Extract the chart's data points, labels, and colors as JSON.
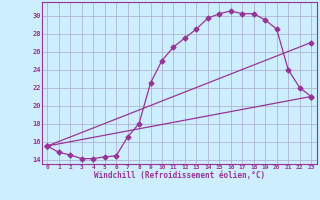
{
  "xlabel": "Windchill (Refroidissement éolien,°C)",
  "xlim": [
    -0.5,
    23.5
  ],
  "ylim": [
    13.5,
    31.5
  ],
  "yticks": [
    14,
    16,
    18,
    20,
    22,
    24,
    26,
    28,
    30
  ],
  "xticks": [
    0,
    1,
    2,
    3,
    4,
    5,
    6,
    7,
    8,
    9,
    10,
    11,
    12,
    13,
    14,
    15,
    16,
    17,
    18,
    19,
    20,
    21,
    22,
    23
  ],
  "line_color": "#993399",
  "bg_color": "#cceeff",
  "grid_color": "#aaaacc",
  "line1_x": [
    0,
    1,
    2,
    3,
    4,
    5,
    6,
    7,
    8,
    9,
    10,
    11,
    12,
    13,
    14,
    15,
    16,
    17,
    18,
    19,
    20,
    21,
    22,
    23
  ],
  "line1_y": [
    15.5,
    14.8,
    14.5,
    14.1,
    14.1,
    14.3,
    14.4,
    16.5,
    18.0,
    22.5,
    25.0,
    26.5,
    27.5,
    28.5,
    29.7,
    30.2,
    30.5,
    30.2,
    30.2,
    29.5,
    28.5,
    24.0,
    22.0,
    21.0
  ],
  "line2_x": [
    0,
    23
  ],
  "line2_y": [
    15.5,
    27.0
  ],
  "line3_x": [
    0,
    23
  ],
  "line3_y": [
    15.5,
    21.0
  ]
}
